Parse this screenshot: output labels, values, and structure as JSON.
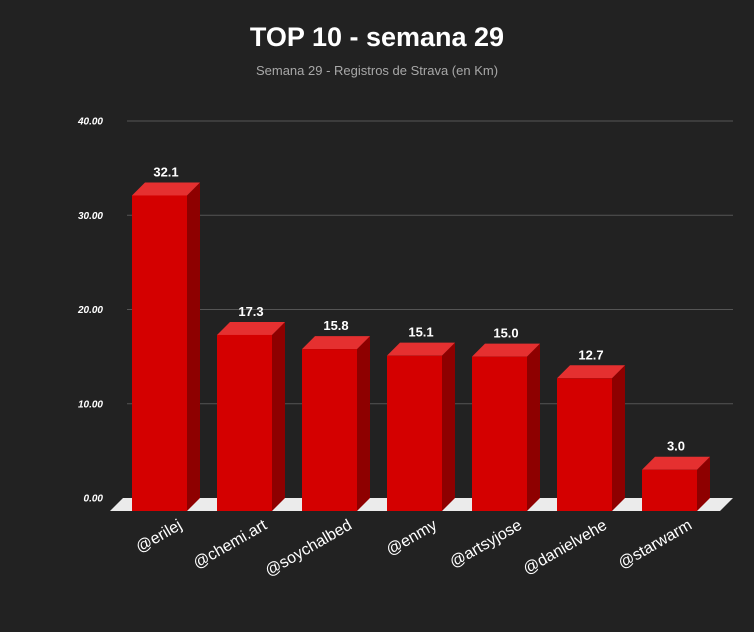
{
  "chart_data": {
    "type": "bar",
    "title": "TOP 10 - semana 29",
    "subtitle": "Semana 29 - Registros de Strava (en Km)",
    "categories": [
      "@erilej",
      "@chemi.art",
      "@soychalbed",
      "@enmy",
      "@artsyjose",
      "@danielvehe",
      "@starwarm"
    ],
    "values": [
      32.1,
      17.3,
      15.8,
      15.1,
      15.0,
      12.7,
      3.0
    ],
    "value_labels": [
      "32.1",
      "17.3",
      "15.8",
      "15.1",
      "15.0",
      "12.7",
      "3.0"
    ],
    "y_ticks": [
      "0.00",
      "10.00",
      "20.00",
      "30.00",
      "40.00"
    ],
    "ylim": [
      0,
      40
    ],
    "grid": true,
    "legend": "none",
    "colors": {
      "background": "#222222",
      "bar_front": "#d40000",
      "bar_top": "#e53030",
      "bar_side": "#8e0000",
      "floor": "#ebebeb",
      "grid": "#555555",
      "text": "#ffffff",
      "subtitle": "#a8a8a8"
    }
  }
}
